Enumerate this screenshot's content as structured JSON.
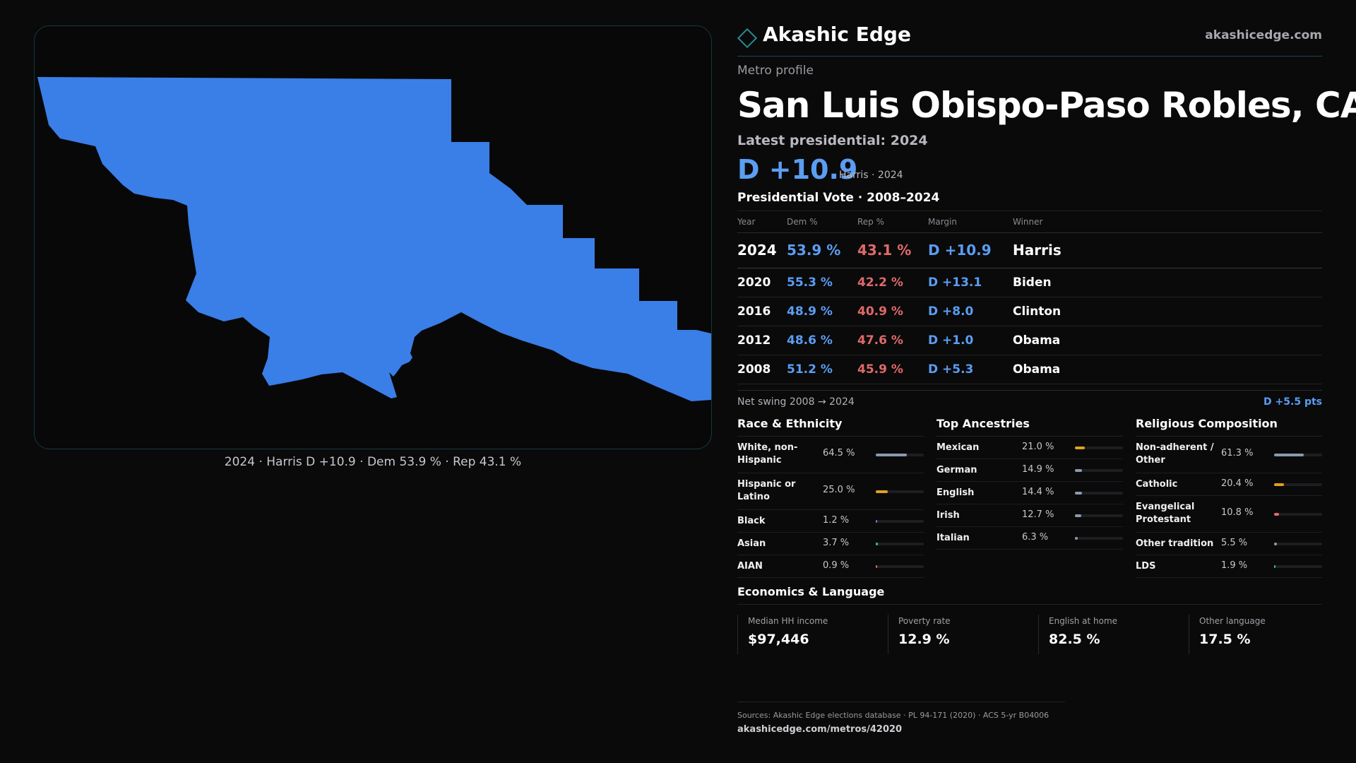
{
  "brand": {
    "name": "Akashic Edge",
    "site": "akashicedge.com"
  },
  "header": {
    "kicker": "Metro profile",
    "title": "San Luis Obispo-Paso Robles, CA",
    "latest": "Latest presidential: 2024",
    "margin": "D +10.9",
    "margin_sub": "Harris · 2024"
  },
  "map": {
    "caption": "2024 · Harris D +10.9 · Dem 53.9 % · Rep 43.1 %",
    "fill_color": "#3a7ee8"
  },
  "pv": {
    "title": "Presidential Vote · 2008–2024",
    "headers": [
      "Year",
      "Dem %",
      "Rep %",
      "Margin",
      "Winner"
    ],
    "rows": [
      {
        "year": "2024",
        "dem": "53.9 %",
        "rep": "43.1 %",
        "margin": "D +10.9",
        "winner": "Harris"
      },
      {
        "year": "2020",
        "dem": "55.3 %",
        "rep": "42.2 %",
        "margin": "D +13.1",
        "winner": "Biden"
      },
      {
        "year": "2016",
        "dem": "48.9 %",
        "rep": "40.9 %",
        "margin": "D +8.0",
        "winner": "Clinton"
      },
      {
        "year": "2012",
        "dem": "48.6 %",
        "rep": "47.6 %",
        "margin": "D +1.0",
        "winner": "Obama"
      },
      {
        "year": "2008",
        "dem": "51.2 %",
        "rep": "45.9 %",
        "margin": "D +5.3",
        "winner": "Obama"
      }
    ],
    "swing_label": "Net swing 2008 → 2024",
    "swing_value": "D +5.5 pts"
  },
  "race": {
    "title": "Race & Ethnicity",
    "items": [
      {
        "label": "White, non-Hispanic",
        "pct": "64.5 %",
        "value": 64.5,
        "color": "#8a9aae"
      },
      {
        "label": "Hispanic or Latino",
        "pct": "25.0 %",
        "value": 25.0,
        "color": "#e0a020"
      },
      {
        "label": "Black",
        "pct": "1.2 %",
        "value": 1.2,
        "color": "#8a6ad8"
      },
      {
        "label": "Asian",
        "pct": "3.7 %",
        "value": 3.7,
        "color": "#3ab89a"
      },
      {
        "label": "AIAN",
        "pct": "0.9 %",
        "value": 0.9,
        "color": "#d8704a"
      }
    ]
  },
  "ancestry": {
    "title": "Top Ancestries",
    "items": [
      {
        "label": "Mexican",
        "pct": "21.0 %",
        "value": 21.0,
        "color": "#e0a020"
      },
      {
        "label": "German",
        "pct": "14.9 %",
        "value": 14.9,
        "color": "#8a9aae"
      },
      {
        "label": "English",
        "pct": "14.4 %",
        "value": 14.4,
        "color": "#8a9aae"
      },
      {
        "label": "Irish",
        "pct": "12.7 %",
        "value": 12.7,
        "color": "#8a9aae"
      },
      {
        "label": "Italian",
        "pct": "6.3 %",
        "value": 6.3,
        "color": "#8a9aae"
      }
    ]
  },
  "religion": {
    "title": "Religious Composition",
    "items": [
      {
        "label": "Non-adherent / Other",
        "pct": "61.3 %",
        "value": 61.3,
        "color": "#8a9aae"
      },
      {
        "label": "Catholic",
        "pct": "20.4 %",
        "value": 20.4,
        "color": "#e0a020"
      },
      {
        "label": "Evangelical Protestant",
        "pct": "10.8 %",
        "value": 10.8,
        "color": "#e06a6a"
      },
      {
        "label": "Other tradition",
        "pct": "5.5 %",
        "value": 5.5,
        "color": "#8a9aae"
      },
      {
        "label": "LDS",
        "pct": "1.9 %",
        "value": 1.9,
        "color": "#3ab89a"
      }
    ]
  },
  "econ": {
    "title": "Economics & Language",
    "cards": [
      {
        "label": "Median HH income",
        "value": "$97,446"
      },
      {
        "label": "Poverty rate",
        "value": "12.9 %"
      },
      {
        "label": "English at home",
        "value": "82.5 %"
      },
      {
        "label": "Other language",
        "value": "17.5 %"
      }
    ]
  },
  "footer": {
    "sources": "Sources: Akashic Edge elections database · PL 94-171 (2020) · ACS 5-yr B04006",
    "url": "akashicedge.com/metros/42020"
  }
}
